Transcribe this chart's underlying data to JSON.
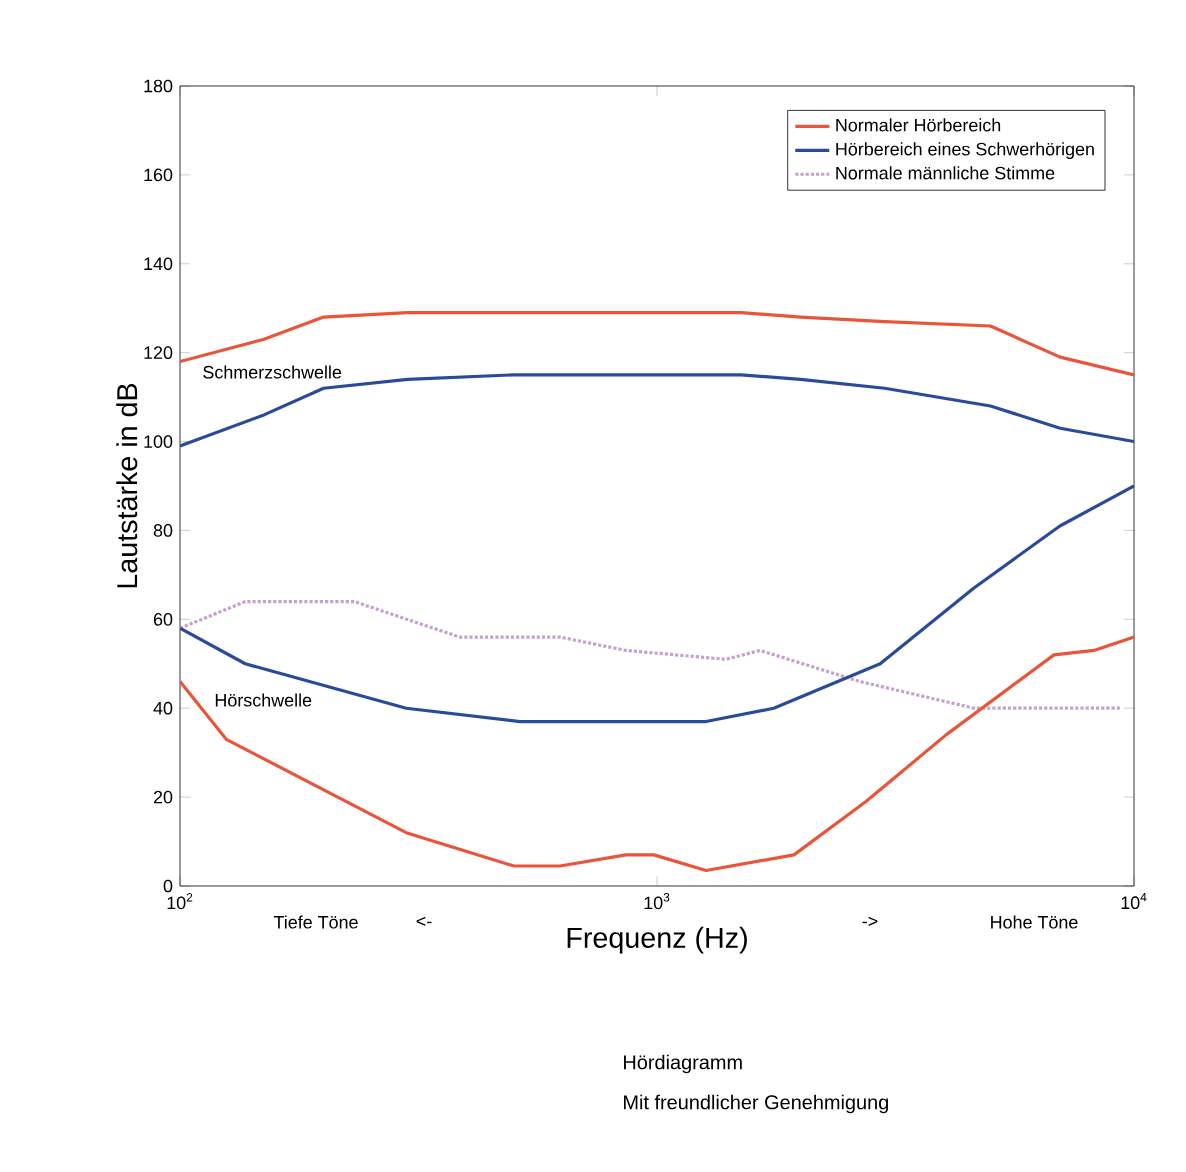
{
  "chart_data": {
    "type": "line",
    "xlabel": "Frequenz (Hz)",
    "ylabel": "Lautstärke in dB",
    "log": "x",
    "xlim": [
      100,
      10000
    ],
    "ylim": [
      0,
      180
    ],
    "xticks": [
      {
        "value": 100,
        "label": "10$^{2}$"
      },
      {
        "value": 1000,
        "label": "10$^{3}$"
      },
      {
        "value": 10000,
        "label": "10$^{4}$"
      }
    ],
    "yticks": [
      0,
      20,
      40,
      60,
      80,
      100,
      120,
      140,
      160,
      180
    ],
    "grid": false,
    "legend": "top right",
    "marker": "none",
    "series": [
      {
        "name": "Normaler Hörbereich",
        "color": "#e8553a",
        "line_style": "solid",
        "x": [
          100,
          150,
          200,
          300,
          500,
          1000,
          1500,
          2000,
          3000,
          5000,
          7000,
          10000
        ],
        "values": [
          118,
          123,
          128,
          129,
          129,
          129,
          129,
          128,
          127,
          126,
          119,
          115
        ]
      },
      {
        "name": "Hörbereich eines Schwerhörigen",
        "color": "#2a4a9a",
        "line_style": "solid",
        "x": [
          100,
          150,
          200,
          300,
          500,
          1000,
          1500,
          2000,
          3000,
          5000,
          7000,
          10000
        ],
        "values": [
          99,
          106,
          112,
          114,
          115,
          115,
          115,
          114,
          112,
          108,
          103,
          100
        ]
      },
      {
        "name": "Normale männliche Stimme",
        "color": "#c8a0d0",
        "line_style": "dotted",
        "x": [
          100,
          137,
          232,
          386,
          626,
          861,
          1395,
          1644,
          2665,
          4620,
          9352
        ],
        "values": [
          58,
          64,
          64,
          56,
          56,
          53,
          51,
          53,
          46,
          40,
          40
        ]
      },
      {
        "color": "#e8553a",
        "line_style": "solid",
        "x": [
          100,
          125,
          298,
          501,
          626,
          861,
          985,
          1267,
          1937,
          2742,
          4036,
          6796,
          8243,
          10000
        ],
        "values": [
          46,
          33,
          12,
          4.5,
          4.5,
          7,
          7,
          3.5,
          7,
          19,
          34,
          52,
          53,
          56
        ]
      },
      {
        "color": "#2a4a9a",
        "line_style": "solid",
        "x": [
          100,
          137,
          298,
          516,
          985,
          1267,
          1757,
          2937,
          4610,
          6992,
          10000
        ],
        "values": [
          58,
          50,
          40,
          37,
          37,
          37,
          40,
          50,
          67,
          81,
          90
        ]
      }
    ],
    "annotations": [
      "Schmerzschwelle",
      "Hörschwelle",
      "Tiefe Töne",
      "<-",
      "->",
      "Hohe Töne",
      "Hördiagramm",
      "Mit freundlicher Genehmigung"
    ]
  }
}
